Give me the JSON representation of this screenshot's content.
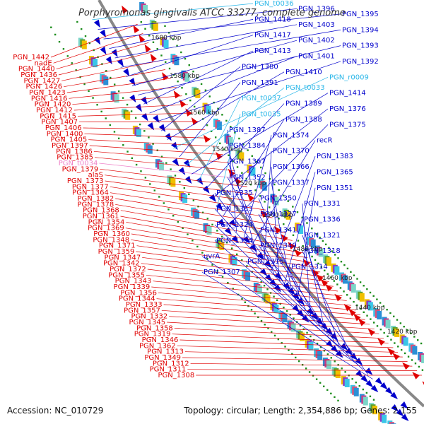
{
  "title": "Porphyromonas gingivalis ATCC 33277, complete genome",
  "accession": "Accession: NC_010729",
  "topology": "Topology: circular; Length: 2,354,886 bp; Genes: 2,155",
  "colors": {
    "left_strand": "#e00000",
    "right_strand": "#0000cc",
    "rna": "#29b6e8",
    "trna_left": "#ee82c8",
    "backbone": "#888888",
    "dots": "#1a8c1a"
  },
  "ticks": [
    "1600 kbp",
    "1580 kbp",
    "1560 kbp",
    "1540 kbp",
    "1520 kbp",
    "1500 kbp",
    "1480 kbp",
    "1460 kbp",
    "1440 kbp",
    "1420 kbp"
  ],
  "left_labels": [
    {
      "t": "PGN_1442",
      "c": "red"
    },
    {
      "t": "nadE",
      "c": "red"
    },
    {
      "t": "PGN_1440",
      "c": "red"
    },
    {
      "t": "PGN_1436",
      "c": "red"
    },
    {
      "t": "PGN_1427",
      "c": "red"
    },
    {
      "t": "PGN_1426",
      "c": "red"
    },
    {
      "t": "PGN_1423",
      "c": "red"
    },
    {
      "t": "PGN_1416",
      "c": "red"
    },
    {
      "t": "PGN_1420",
      "c": "red"
    },
    {
      "t": "PGN_1412",
      "c": "red"
    },
    {
      "t": "PGN_1415",
      "c": "red"
    },
    {
      "t": "PGN_1407",
      "c": "red"
    },
    {
      "t": "PGN_1406",
      "c": "red"
    },
    {
      "t": "PGN_1400",
      "c": "red"
    },
    {
      "t": "PGN_1405",
      "c": "red"
    },
    {
      "t": "PGN_1397",
      "c": "red"
    },
    {
      "t": "PGN_1386",
      "c": "red"
    },
    {
      "t": "PGN_1385",
      "c": "red"
    },
    {
      "t": "PGN_t0034",
      "c": "pink"
    },
    {
      "t": "PGN_1379",
      "c": "red"
    },
    {
      "t": "alaS",
      "c": "red"
    },
    {
      "t": "PGN_1373",
      "c": "red"
    },
    {
      "t": "PGN_1377",
      "c": "red"
    },
    {
      "t": "PGN_1364",
      "c": "red"
    },
    {
      "t": "PGN_1382",
      "c": "red"
    },
    {
      "t": "PGN_1378",
      "c": "red"
    },
    {
      "t": "PGN_1368",
      "c": "red"
    },
    {
      "t": "PGN_1361",
      "c": "red"
    },
    {
      "t": "PGN_1354",
      "c": "red"
    },
    {
      "t": "PGN_1369",
      "c": "red"
    },
    {
      "t": "PGN_1360",
      "c": "red"
    },
    {
      "t": "PGN_1348",
      "c": "red"
    },
    {
      "t": "PGN_1371",
      "c": "red"
    },
    {
      "t": "PGN_1359",
      "c": "red"
    },
    {
      "t": "PGN_1347",
      "c": "red"
    },
    {
      "t": "PGN_1342",
      "c": "red"
    },
    {
      "t": "PGN_1372",
      "c": "red"
    },
    {
      "t": "PGN_1355",
      "c": "red"
    },
    {
      "t": "PGN_1343",
      "c": "red"
    },
    {
      "t": "PGN_1339",
      "c": "red"
    },
    {
      "t": "PGN_1356",
      "c": "red"
    },
    {
      "t": "PGN_1344",
      "c": "red"
    },
    {
      "t": "PGN_1333",
      "c": "red"
    },
    {
      "t": "PGN_1357",
      "c": "red"
    },
    {
      "t": "PGN_1332",
      "c": "red"
    },
    {
      "t": "PGN_1345",
      "c": "red"
    },
    {
      "t": "PGN_1358",
      "c": "red"
    },
    {
      "t": "PGN_1319",
      "c": "red"
    },
    {
      "t": "PGN_1346",
      "c": "red"
    },
    {
      "t": "PGN_1362",
      "c": "red"
    },
    {
      "t": "PGN_1313",
      "c": "red"
    },
    {
      "t": "PGN_1349",
      "c": "red"
    },
    {
      "t": "PGN_1312",
      "c": "red"
    },
    {
      "t": "PGN_1311",
      "c": "red"
    },
    {
      "t": "PGN_1308",
      "c": "red"
    }
  ],
  "right_labels": [
    {
      "t": "PGN_t0036",
      "c": "cyan"
    },
    {
      "t": "PGN_1396",
      "c": "blue"
    },
    {
      "t": "PGN_1395",
      "c": "blue"
    },
    {
      "t": "PGN_1418",
      "c": "blue"
    },
    {
      "t": "PGN_1403",
      "c": "blue"
    },
    {
      "t": "PGN_1394",
      "c": "blue"
    },
    {
      "t": "PGN_1417",
      "c": "blue"
    },
    {
      "t": "PGN_1402",
      "c": "blue"
    },
    {
      "t": "PGN_1393",
      "c": "blue"
    },
    {
      "t": "PGN_1413",
      "c": "blue"
    },
    {
      "t": "PGN_1401",
      "c": "blue"
    },
    {
      "t": "PGN_1392",
      "c": "blue"
    },
    {
      "t": "PGN_1380",
      "c": "blue"
    },
    {
      "t": "PGN_1410",
      "c": "blue"
    },
    {
      "t": "PGN_r0009",
      "c": "cyan"
    },
    {
      "t": "PGN_1391",
      "c": "blue"
    },
    {
      "t": "PGN_t0033",
      "c": "cyan"
    },
    {
      "t": "PGN_1414",
      "c": "blue"
    },
    {
      "t": "PGN_t0037",
      "c": "cyan"
    },
    {
      "t": "PGN_1389",
      "c": "blue"
    },
    {
      "t": "PGN_1376",
      "c": "blue"
    },
    {
      "t": "PGN_t0035",
      "c": "cyan"
    },
    {
      "t": "PGN_1388",
      "c": "blue"
    },
    {
      "t": "PGN_1375",
      "c": "blue"
    },
    {
      "t": "PGN_1387",
      "c": "blue"
    },
    {
      "t": "PGN_1374",
      "c": "blue"
    },
    {
      "t": "recR",
      "c": "blue"
    },
    {
      "t": "PGN_1384",
      "c": "blue"
    },
    {
      "t": "PGN_1370",
      "c": "blue"
    },
    {
      "t": "PGN_1383",
      "c": "blue"
    },
    {
      "t": "PGN_1367",
      "c": "blue"
    },
    {
      "t": "PGN_1366",
      "c": "blue"
    },
    {
      "t": "PGN_1365",
      "c": "blue"
    },
    {
      "t": "PGN_1352",
      "c": "blue"
    },
    {
      "t": "PGN_1337",
      "c": "blue"
    },
    {
      "t": "PGN_1351",
      "c": "blue"
    },
    {
      "t": "PGN_1335",
      "c": "blue"
    },
    {
      "t": "PGN_1350",
      "c": "blue"
    },
    {
      "t": "PGN_1331",
      "c": "blue"
    },
    {
      "t": "PGN_1353",
      "c": "blue"
    },
    {
      "t": "PGN_1327",
      "c": "blue"
    },
    {
      "t": "PGN_1336",
      "c": "blue"
    },
    {
      "t": "PGN_1324",
      "c": "blue"
    },
    {
      "t": "PGN_1341",
      "c": "blue"
    },
    {
      "t": "PGN_1321",
      "c": "blue"
    },
    {
      "t": "PGN_1334",
      "c": "blue"
    },
    {
      "t": "PGN_1340",
      "c": "blue"
    },
    {
      "t": "PGN_1318",
      "c": "blue"
    },
    {
      "t": "uvrA",
      "c": "blue"
    },
    {
      "t": "PGN_1315",
      "c": "blue"
    },
    {
      "t": "PGN_1314",
      "c": "blue"
    },
    {
      "t": "PGN_1307",
      "c": "blue"
    }
  ]
}
